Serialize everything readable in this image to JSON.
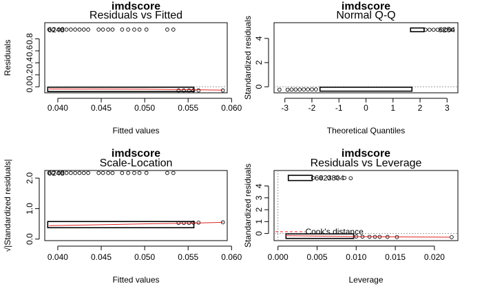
{
  "figure_title": "imdscore",
  "chart_data": [
    {
      "type": "scatter",
      "title": "imdscore",
      "subtitle": "Residuals vs Fitted",
      "xlabel": "Fitted values",
      "ylabel": "Residuals",
      "xlim": [
        0.0385,
        0.0595
      ],
      "ylim": [
        -0.1,
        1.07
      ],
      "x_ticks": [
        "0.040",
        "0.045",
        "0.050",
        "0.055",
        "0.060"
      ],
      "x_tick_values": [
        0.04,
        0.045,
        0.05,
        0.055,
        0.06
      ],
      "y_ticks": [
        "0.0",
        "0.2",
        "0.4",
        "0.6",
        "0.8"
      ],
      "y_tick_values": [
        0.0,
        0.2,
        0.4,
        0.6,
        0.8
      ],
      "reference_line": {
        "y": 0
      },
      "outlier_label": "6248",
      "lower_band": {
        "x_range": [
          0.039,
          0.0555
        ],
        "y_range": [
          -0.05,
          -0.035
        ]
      },
      "upper_points": [
        {
          "x": 0.039,
          "y": 0.955
        },
        {
          "x": 0.0395,
          "y": 0.955
        },
        {
          "x": 0.0401,
          "y": 0.955
        },
        {
          "x": 0.0405,
          "y": 0.955
        },
        {
          "x": 0.041,
          "y": 0.955
        },
        {
          "x": 0.0415,
          "y": 0.955
        },
        {
          "x": 0.042,
          "y": 0.955
        },
        {
          "x": 0.0425,
          "y": 0.955
        },
        {
          "x": 0.043,
          "y": 0.955
        },
        {
          "x": 0.0435,
          "y": 0.955
        },
        {
          "x": 0.0447,
          "y": 0.955
        },
        {
          "x": 0.0452,
          "y": 0.955
        },
        {
          "x": 0.0458,
          "y": 0.955
        },
        {
          "x": 0.0463,
          "y": 0.955
        },
        {
          "x": 0.0474,
          "y": 0.955
        },
        {
          "x": 0.0481,
          "y": 0.955
        },
        {
          "x": 0.0488,
          "y": 0.955
        },
        {
          "x": 0.0494,
          "y": 0.955
        },
        {
          "x": 0.0502,
          "y": 0.955
        },
        {
          "x": 0.0526,
          "y": 0.955
        },
        {
          "x": 0.0533,
          "y": 0.955
        }
      ],
      "lower_points": [
        {
          "x": 0.0539,
          "y": -0.06
        },
        {
          "x": 0.0545,
          "y": -0.06
        },
        {
          "x": 0.0551,
          "y": -0.06
        },
        {
          "x": 0.0556,
          "y": -0.06
        },
        {
          "x": 0.0562,
          "y": -0.06
        },
        {
          "x": 0.059,
          "y": -0.06
        }
      ],
      "smooth_line": [
        {
          "x": 0.039,
          "y": -0.036
        },
        {
          "x": 0.05,
          "y": -0.04
        },
        {
          "x": 0.053,
          "y": -0.045
        },
        {
          "x": 0.059,
          "y": -0.055
        }
      ]
    },
    {
      "type": "scatter",
      "title": "imdscore",
      "subtitle": "Normal Q-Q",
      "xlabel": "Theoretical Quantiles",
      "ylabel": "Standardized residuals",
      "xlim": [
        -3.4,
        3.4
      ],
      "ylim": [
        -0.5,
        5.3
      ],
      "x_ticks": [
        "-3",
        "-2",
        "-1",
        "0",
        "1",
        "2",
        "3"
      ],
      "x_tick_values": [
        -3,
        -2,
        -1,
        0,
        1,
        2,
        3
      ],
      "y_ticks": [
        "0",
        "2",
        "4"
      ],
      "y_tick_values": [
        0,
        2,
        4
      ],
      "reference_line": {
        "y": 0
      },
      "outlier_label": "6254",
      "lower_band": {
        "x_range": [
          -1.65,
          1.65
        ],
        "y_range": [
          -0.22,
          -0.18
        ]
      },
      "lower_points": [
        {
          "x": -3.2,
          "y": -0.24
        },
        {
          "x": -2.9,
          "y": -0.24
        },
        {
          "x": -2.75,
          "y": -0.23
        },
        {
          "x": -2.6,
          "y": -0.23
        },
        {
          "x": -2.45,
          "y": -0.23
        },
        {
          "x": -2.3,
          "y": -0.22
        },
        {
          "x": -2.15,
          "y": -0.22
        },
        {
          "x": -2.0,
          "y": -0.22
        },
        {
          "x": -1.85,
          "y": -0.22
        }
      ],
      "upper_band": {
        "x_range": [
          1.7,
          2.1
        ],
        "y_range": [
          4.7,
          4.72
        ]
      },
      "upper_points": [
        {
          "x": 2.2,
          "y": 4.72
        },
        {
          "x": 2.35,
          "y": 4.72
        },
        {
          "x": 2.5,
          "y": 4.72
        },
        {
          "x": 2.65,
          "y": 4.72
        },
        {
          "x": 2.8,
          "y": 4.72
        },
        {
          "x": 2.95,
          "y": 4.72
        },
        {
          "x": 3.1,
          "y": 4.72
        },
        {
          "x": 3.2,
          "y": 4.72
        }
      ]
    },
    {
      "type": "scatter",
      "title": "imdscore",
      "subtitle": "Scale-Location",
      "xlabel": "Fitted values",
      "ylabel": "√|Standardized residuals|",
      "xlim": [
        0.0385,
        0.0595
      ],
      "ylim": [
        -0.05,
        2.25
      ],
      "x_ticks": [
        "0.040",
        "0.045",
        "0.050",
        "0.055",
        "0.060"
      ],
      "x_tick_values": [
        0.04,
        0.045,
        0.05,
        0.055,
        0.06
      ],
      "y_ticks": [
        "0.0",
        "1.0",
        "2.0"
      ],
      "y_tick_values": [
        0.0,
        1.0,
        2.0
      ],
      "outlier_label": "6248",
      "lower_band": {
        "x_range": [
          0.039,
          0.0555
        ],
        "y_range": [
          0.43,
          0.52
        ]
      },
      "upper_points": [
        {
          "x": 0.039,
          "y": 2.17
        },
        {
          "x": 0.0395,
          "y": 2.17
        },
        {
          "x": 0.0401,
          "y": 2.17
        },
        {
          "x": 0.0405,
          "y": 2.17
        },
        {
          "x": 0.041,
          "y": 2.17
        },
        {
          "x": 0.0415,
          "y": 2.17
        },
        {
          "x": 0.042,
          "y": 2.17
        },
        {
          "x": 0.0425,
          "y": 2.17
        },
        {
          "x": 0.043,
          "y": 2.17
        },
        {
          "x": 0.0435,
          "y": 2.17
        },
        {
          "x": 0.0447,
          "y": 2.17
        },
        {
          "x": 0.0452,
          "y": 2.17
        },
        {
          "x": 0.0458,
          "y": 2.17
        },
        {
          "x": 0.0463,
          "y": 2.17
        },
        {
          "x": 0.0474,
          "y": 2.17
        },
        {
          "x": 0.0481,
          "y": 2.17
        },
        {
          "x": 0.0488,
          "y": 2.17
        },
        {
          "x": 0.0494,
          "y": 2.17
        },
        {
          "x": 0.0502,
          "y": 2.17
        },
        {
          "x": 0.0526,
          "y": 2.17
        },
        {
          "x": 0.0533,
          "y": 2.17
        }
      ],
      "lower_points": [
        {
          "x": 0.0539,
          "y": 0.53
        },
        {
          "x": 0.0545,
          "y": 0.53
        },
        {
          "x": 0.0551,
          "y": 0.53
        },
        {
          "x": 0.0556,
          "y": 0.54
        },
        {
          "x": 0.0562,
          "y": 0.54
        },
        {
          "x": 0.059,
          "y": 0.55
        }
      ],
      "smooth_line": [
        {
          "x": 0.039,
          "y": 0.44
        },
        {
          "x": 0.045,
          "y": 0.47
        },
        {
          "x": 0.05,
          "y": 0.5
        },
        {
          "x": 0.055,
          "y": 0.52
        },
        {
          "x": 0.059,
          "y": 0.55
        }
      ]
    },
    {
      "type": "scatter",
      "title": "imdscore",
      "subtitle": "Residuals vs Leverage",
      "xlabel": "Leverage",
      "ylabel": "Standardized residuals",
      "xlim": [
        -0.0005,
        0.023
      ],
      "ylim": [
        -0.6,
        5.3
      ],
      "x_ticks": [
        "0.000",
        "0.005",
        "0.010",
        "0.015",
        "0.020"
      ],
      "x_tick_values": [
        0.0,
        0.005,
        0.01,
        0.015,
        0.02
      ],
      "y_ticks": [
        "0",
        "1",
        "2",
        "3",
        "4"
      ],
      "y_tick_values": [
        0,
        1,
        2,
        3,
        4
      ],
      "reference_line": {
        "y": 0
      },
      "vertical_reference": {
        "x": 0
      },
      "outlier_label": "6823804",
      "annotation": "Cook's distance",
      "upper_band": {
        "x_range": [
          0.0015,
          0.0042
        ],
        "y_range": [
          4.6,
          4.75
        ]
      },
      "upper_points": [
        {
          "x": 0.0045,
          "y": 4.68
        },
        {
          "x": 0.0055,
          "y": 4.7
        },
        {
          "x": 0.0065,
          "y": 4.7
        },
        {
          "x": 0.0075,
          "y": 4.7
        },
        {
          "x": 0.0085,
          "y": 4.68
        },
        {
          "x": 0.0093,
          "y": 4.65
        }
      ],
      "lower_band": {
        "x_range": [
          0.0012,
          0.0095
        ],
        "y_range": [
          -0.27,
          -0.18
        ]
      },
      "lower_points": [
        {
          "x": 0.01,
          "y": -0.26
        },
        {
          "x": 0.0108,
          "y": -0.27
        },
        {
          "x": 0.0117,
          "y": -0.28
        },
        {
          "x": 0.0124,
          "y": -0.28
        },
        {
          "x": 0.013,
          "y": -0.28
        },
        {
          "x": 0.014,
          "y": -0.29
        },
        {
          "x": 0.0152,
          "y": -0.3
        },
        {
          "x": 0.0222,
          "y": -0.31
        }
      ],
      "smooth_line": [
        {
          "x": 0.001,
          "y": -0.18
        },
        {
          "x": 0.005,
          "y": -0.22
        },
        {
          "x": 0.01,
          "y": -0.26
        },
        {
          "x": 0.015,
          "y": -0.29
        },
        {
          "x": 0.022,
          "y": -0.31
        }
      ]
    }
  ]
}
